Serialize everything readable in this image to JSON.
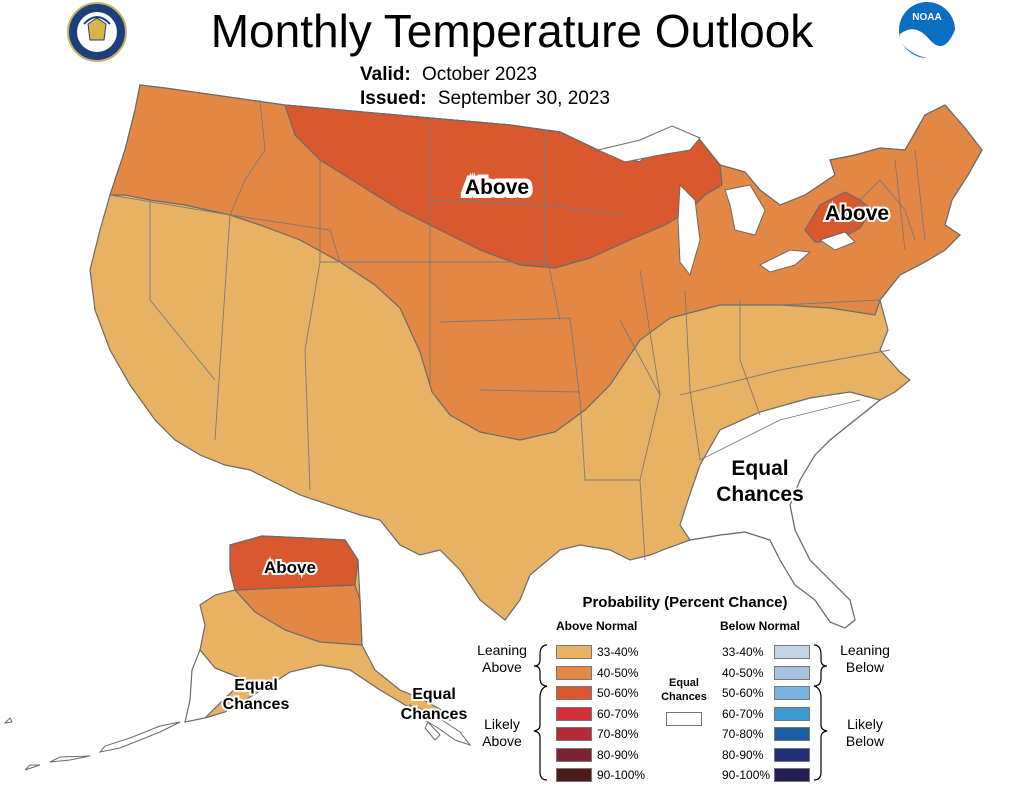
{
  "header": {
    "title": "Monthly Temperature Outlook",
    "valid_label": "Valid:",
    "valid_value": "October 2023",
    "issued_label": "Issued:",
    "issued_value": "September 30, 2023"
  },
  "logos": {
    "commerce": "department-of-commerce-seal",
    "noaa": "NOAA",
    "noaa_color": "#0a6fc2"
  },
  "map_labels": {
    "conus_above_north": "Above",
    "conus_above_ne": "Above",
    "conus_equal_se_1": "Equal",
    "conus_equal_se_2": "Chances",
    "ak_above": "Above",
    "ak_equal_1": "Equal",
    "ak_equal_2": "Chances",
    "ak_se_equal_1": "Equal",
    "ak_se_equal_2": "Chances"
  },
  "colors": {
    "above_33_40": "#e8b264",
    "above_40_50": "#e38744",
    "above_50_60": "#d9582e",
    "equal": "#ffffff",
    "border": "#6b6b6b"
  },
  "legend": {
    "title": "Probability (Percent Chance)",
    "above_header": "Above Normal",
    "below_header": "Below Normal",
    "equal_1": "Equal",
    "equal_2": "Chances",
    "leaning_above_1": "Leaning",
    "leaning_above_2": "Above",
    "likely_above_1": "Likely",
    "likely_above_2": "Above",
    "leaning_below_1": "Leaning",
    "leaning_below_2": "Below",
    "likely_below_1": "Likely",
    "likely_below_2": "Below",
    "above": [
      {
        "label": "33-40%",
        "color": "#e8b264"
      },
      {
        "label": "40-50%",
        "color": "#e38744"
      },
      {
        "label": "50-60%",
        "color": "#d9582e"
      },
      {
        "label": "60-70%",
        "color": "#d1303a"
      },
      {
        "label": "70-80%",
        "color": "#b52a36"
      },
      {
        "label": "80-90%",
        "color": "#7b2330"
      },
      {
        "label": "90-100%",
        "color": "#4d1a1c"
      }
    ],
    "below": [
      {
        "label": "33-40%",
        "color": "#c6d6ea"
      },
      {
        "label": "40-50%",
        "color": "#a4c2e2"
      },
      {
        "label": "50-60%",
        "color": "#7cb4e0"
      },
      {
        "label": "60-70%",
        "color": "#3f9ad4"
      },
      {
        "label": "70-80%",
        "color": "#1a5fa2"
      },
      {
        "label": "80-90%",
        "color": "#1f2f7a"
      },
      {
        "label": "90-100%",
        "color": "#221d55"
      }
    ]
  }
}
